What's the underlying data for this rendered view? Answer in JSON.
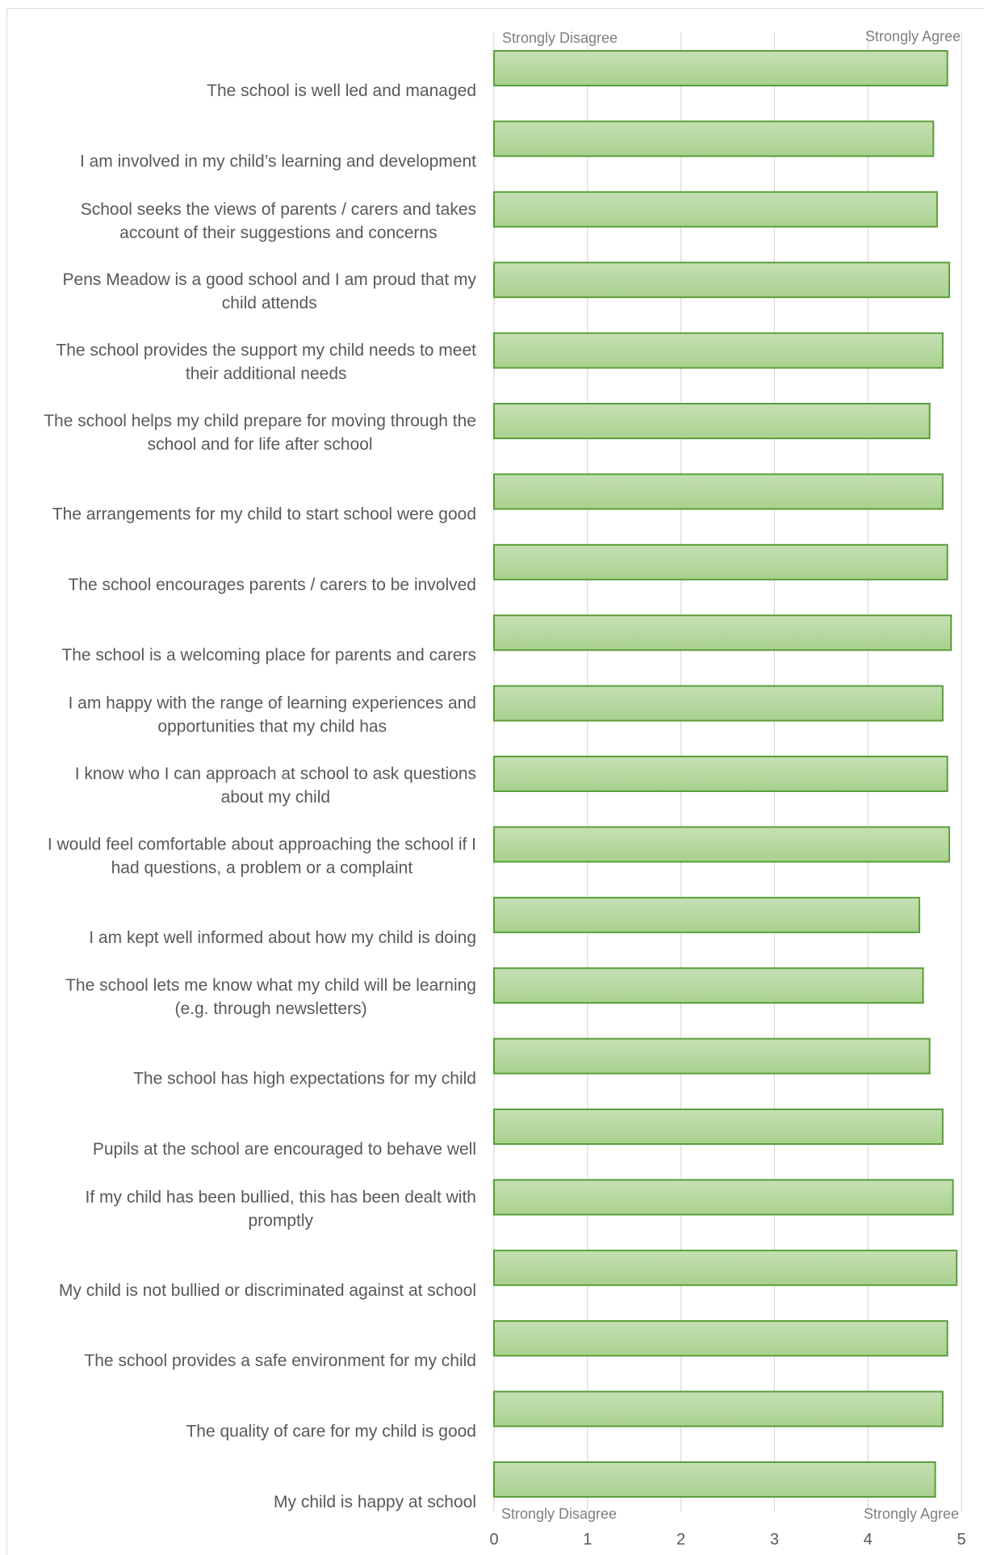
{
  "chart_data": {
    "type": "bar",
    "orientation": "horizontal",
    "categories": [
      "The school is well led and managed",
      "I am involved in my child’s learning and development",
      "School seeks the views of parents / carers and takes account of their suggestions and concerns",
      "Pens Meadow is a good school and I am proud that my child attends",
      "The school provides the support my child needs to meet their additional needs",
      "The school helps my child prepare for moving through the school and for life after school",
      "The arrangements for my child to start school were good",
      "The school encourages parents / carers to be  involved",
      "The school is a welcoming place for parents and carers",
      "I am happy with the  range of learning experiences and opportunities  that my child has",
      "I know who I can approach at school to ask questions about my child",
      "I would feel comfortable about approaching the school if I had questions, a problem or a complaint",
      "I am kept well informed about how my child is doing",
      "The school lets me know what my child will be learning (e.g. through newsletters)",
      "The school has high expectations for my child",
      "Pupils at the school are encouraged to behave well",
      "If my child has been bullied, this has been dealt with promptly",
      "My child is not bullied or discriminated against at school",
      "The school provides a safe environment for my child",
      "The quality of care for my child is good",
      "My child is happy at school"
    ],
    "category_lines": [
      [
        "The school is well led and managed"
      ],
      [
        "I am involved in my child’s learning and development"
      ],
      [
        "School seeks the views of parents / carers and takes",
        "account of their suggestions and concerns"
      ],
      [
        "Pens Meadow is a good school and I am proud that my",
        "child attends"
      ],
      [
        "The school provides the support my child needs to meet",
        "their additional needs"
      ],
      [
        "The school helps my child prepare for moving through the",
        "school and for life after school"
      ],
      [
        "The arrangements for my child to start school were good"
      ],
      [
        "The school encourages parents / carers to be  involved"
      ],
      [
        "The school is a welcoming place for parents and carers"
      ],
      [
        "I am happy with the  range of learning experiences and",
        "opportunities  that my child has"
      ],
      [
        "I know who I can approach at school to ask questions",
        "about my child"
      ],
      [
        "I would feel comfortable about approaching the school if I",
        "had questions, a problem or a complaint"
      ],
      [
        "I am kept well informed about how my child is doing"
      ],
      [
        "The school lets me know what my child will be learning",
        "(e.g. through newsletters)"
      ],
      [
        "The school has high expectations for my child"
      ],
      [
        "Pupils at the school are encouraged to behave well"
      ],
      [
        "If my child has been bullied, this has been dealt with",
        "promptly"
      ],
      [
        "My child is not bullied or discriminated against at school"
      ],
      [
        "The school provides a safe environment for my child"
      ],
      [
        "The quality of care for my child is good"
      ],
      [
        "My child is happy at school"
      ]
    ],
    "values": [
      4.85,
      4.7,
      4.74,
      4.87,
      4.8,
      4.66,
      4.8,
      4.85,
      4.89,
      4.8,
      4.85,
      4.87,
      4.55,
      4.59,
      4.66,
      4.8,
      4.91,
      4.95,
      4.85,
      4.8,
      4.72
    ],
    "xlim": [
      0,
      5
    ],
    "xticks": [
      0,
      1,
      2,
      3,
      4,
      5
    ],
    "scale_labels": {
      "low": "Strongly Disagree",
      "high": "Strongly Agree"
    },
    "grid": true,
    "colors": {
      "bar_fill_top": "#c5e0b4",
      "bar_fill_bottom": "#a9d18e",
      "bar_edge": "#5a9e3a",
      "grid": "#d9d9d9"
    },
    "title": "",
    "xlabel": "",
    "ylabel": ""
  }
}
